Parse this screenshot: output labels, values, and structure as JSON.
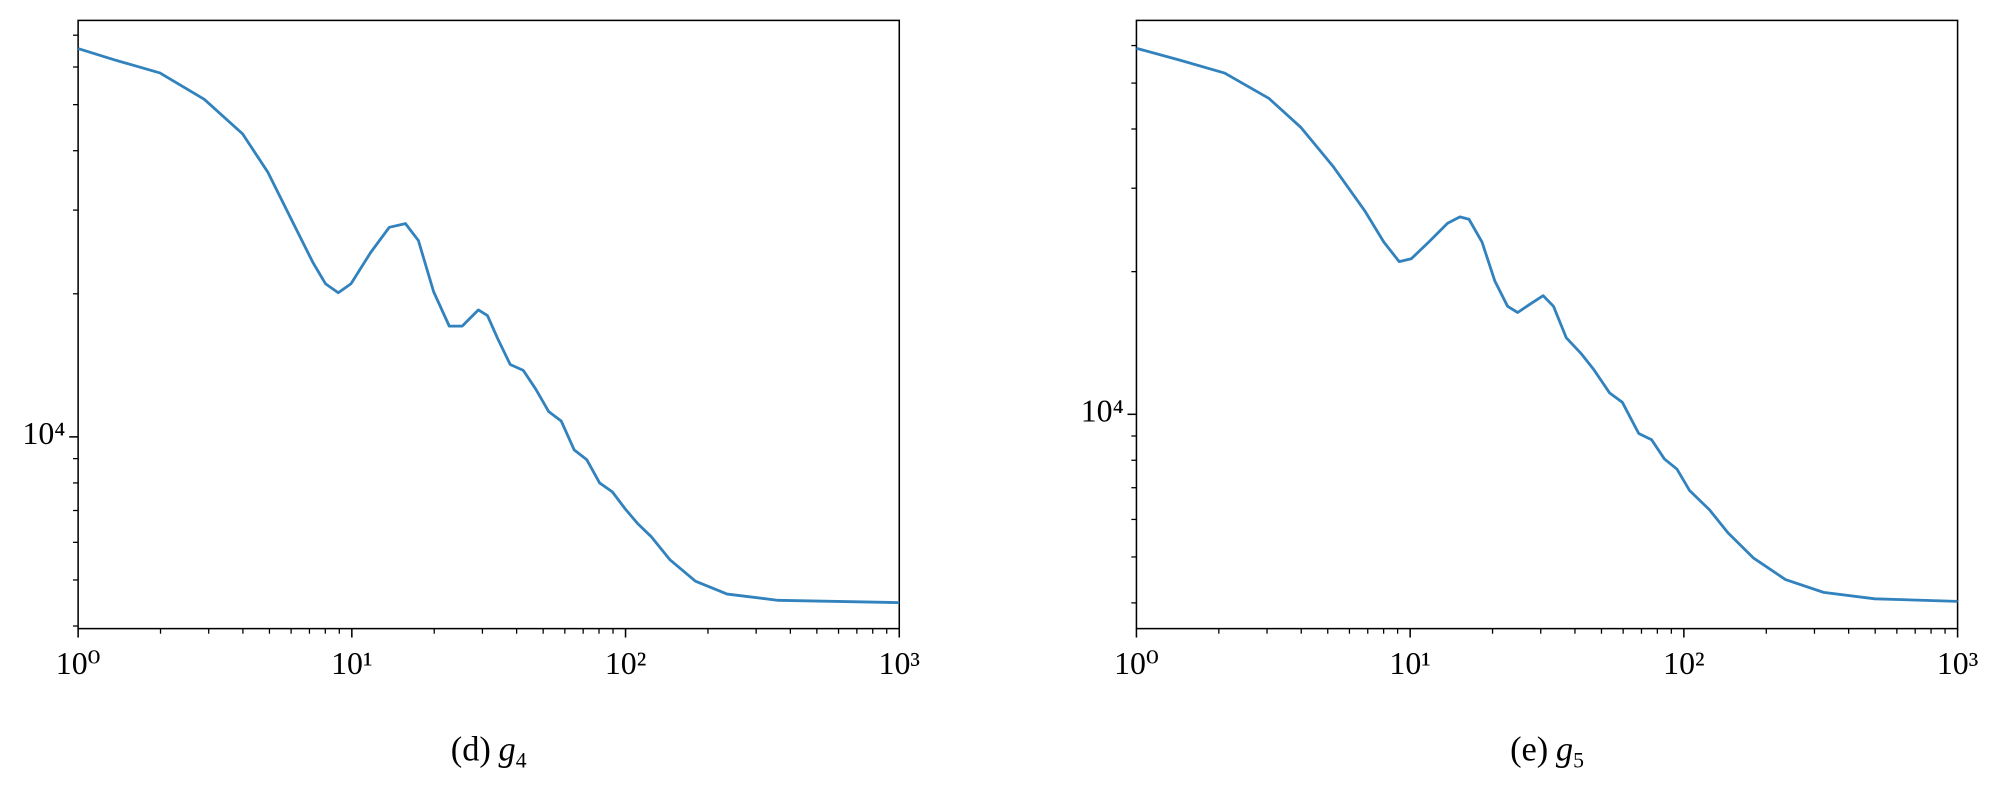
{
  "chart_data": [
    {
      "type": "line",
      "log_x": true,
      "log_y": true,
      "caption": {
        "label": "(d)",
        "var": "g",
        "sub": "4"
      },
      "xlim": [
        1,
        1000
      ],
      "xticks": [
        {
          "value": 1,
          "label": "10⁰"
        },
        {
          "value": 10,
          "label": "10¹"
        },
        {
          "value": 100,
          "label": "10²"
        },
        {
          "value": 1000,
          "label": "10³"
        }
      ],
      "xminor": [
        2,
        3,
        4,
        5,
        6,
        7,
        8,
        9,
        20,
        30,
        40,
        50,
        60,
        70,
        80,
        90,
        200,
        300,
        400,
        500,
        600,
        700,
        800,
        900
      ],
      "ylim": [
        3950,
        75200
      ],
      "yticks": [
        {
          "value": 10000,
          "label": "10⁴"
        }
      ],
      "yminor": [
        4000,
        5000,
        6000,
        7000,
        8000,
        9000,
        20000,
        30000,
        40000,
        50000,
        60000,
        70000
      ],
      "series": [
        {
          "color": "#3182bd",
          "x": [
            1,
            1.36,
            1.99,
            2.89,
            3.99,
            4.94,
            6.12,
            7.2,
            8.01,
            8.92,
            9.93,
            11.7,
            13.7,
            15.7,
            17.5,
            19.9,
            22.7,
            25.3,
            29.0,
            31.3,
            34.1,
            37.9,
            42.3,
            47.0,
            52.4,
            58.2,
            64.9,
            72.2,
            80.4,
            89.5,
            99.6,
            111,
            124,
            145,
            180,
            235,
            361,
            1000
          ],
          "values": [
            65600,
            62100,
            58300,
            51300,
            43400,
            36000,
            28100,
            23300,
            21000,
            20100,
            21000,
            24400,
            27600,
            28100,
            25900,
            20200,
            17100,
            17100,
            18500,
            18000,
            16100,
            14200,
            13800,
            12600,
            11300,
            10800,
            9390,
            8950,
            8000,
            7660,
            7060,
            6560,
            6170,
            5520,
            4970,
            4670,
            4530,
            4480
          ]
        }
      ]
    },
    {
      "type": "line",
      "log_x": true,
      "log_y": true,
      "caption": {
        "label": "(e)",
        "var": "g",
        "sub": "5"
      },
      "xlim": [
        1,
        1000
      ],
      "xticks": [
        {
          "value": 1,
          "label": "10⁰"
        },
        {
          "value": 10,
          "label": "10¹"
        },
        {
          "value": 100,
          "label": "10²"
        },
        {
          "value": 1000,
          "label": "10³"
        }
      ],
      "xminor": [
        2,
        3,
        4,
        5,
        6,
        7,
        8,
        9,
        20,
        30,
        40,
        50,
        60,
        70,
        80,
        90,
        200,
        300,
        400,
        500,
        600,
        700,
        800,
        900
      ],
      "ylim": [
        3530,
        67800
      ],
      "yticks": [
        {
          "value": 10000,
          "label": "10⁴"
        }
      ],
      "yminor": [
        4000,
        5000,
        6000,
        7000,
        8000,
        9000,
        20000,
        30000,
        40000,
        50000,
        60000
      ],
      "series": [
        {
          "color": "#3182bd",
          "x": [
            1,
            1.44,
            2.1,
            3.05,
            3.99,
            5.22,
            6.82,
            8.01,
            9.12,
            10.1,
            11.7,
            13.7,
            15.2,
            16.4,
            18.3,
            20.4,
            22.7,
            24.7,
            27.5,
            30.6,
            33.4,
            37.2,
            42.3,
            47.0,
            53.5,
            59.6,
            68.4,
            76.2,
            84.9,
            94.4,
            105,
            124,
            145,
            180,
            235,
            324,
            498,
            1000
          ],
          "values": [
            59200,
            55900,
            52500,
            46400,
            40300,
            33400,
            26900,
            23100,
            21000,
            21300,
            23100,
            25300,
            26100,
            25800,
            23100,
            19100,
            16900,
            16400,
            17100,
            17800,
            16900,
            14500,
            13400,
            12400,
            11100,
            10600,
            9110,
            8840,
            8050,
            7660,
            6900,
            6290,
            5620,
            4970,
            4480,
            4210,
            4080,
            4030
          ]
        }
      ]
    }
  ]
}
